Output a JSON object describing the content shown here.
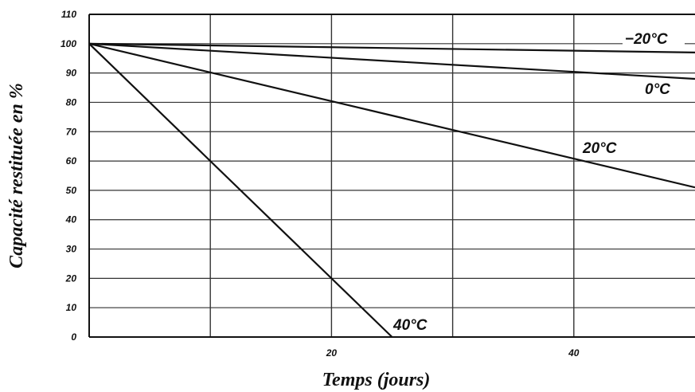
{
  "chart_data": {
    "type": "line",
    "xlabel": "Temps (jours)",
    "ylabel": "Capacité restituée en %",
    "xlim": [
      0,
      50
    ],
    "ylim": [
      0,
      110
    ],
    "x_ticks": [
      20,
      40
    ],
    "y_ticks": [
      0,
      10,
      20,
      30,
      40,
      50,
      60,
      70,
      80,
      90,
      100,
      110
    ],
    "grid": true,
    "series": [
      {
        "name": "−20°C",
        "x": [
          0,
          50
        ],
        "y": [
          100,
          97
        ]
      },
      {
        "name": "0°C",
        "x": [
          0,
          50
        ],
        "y": [
          100,
          88
        ]
      },
      {
        "name": "20°C",
        "x": [
          0,
          50
        ],
        "y": [
          100,
          51
        ]
      },
      {
        "name": "40°C",
        "x": [
          0,
          25
        ],
        "y": [
          100,
          0
        ]
      }
    ]
  }
}
